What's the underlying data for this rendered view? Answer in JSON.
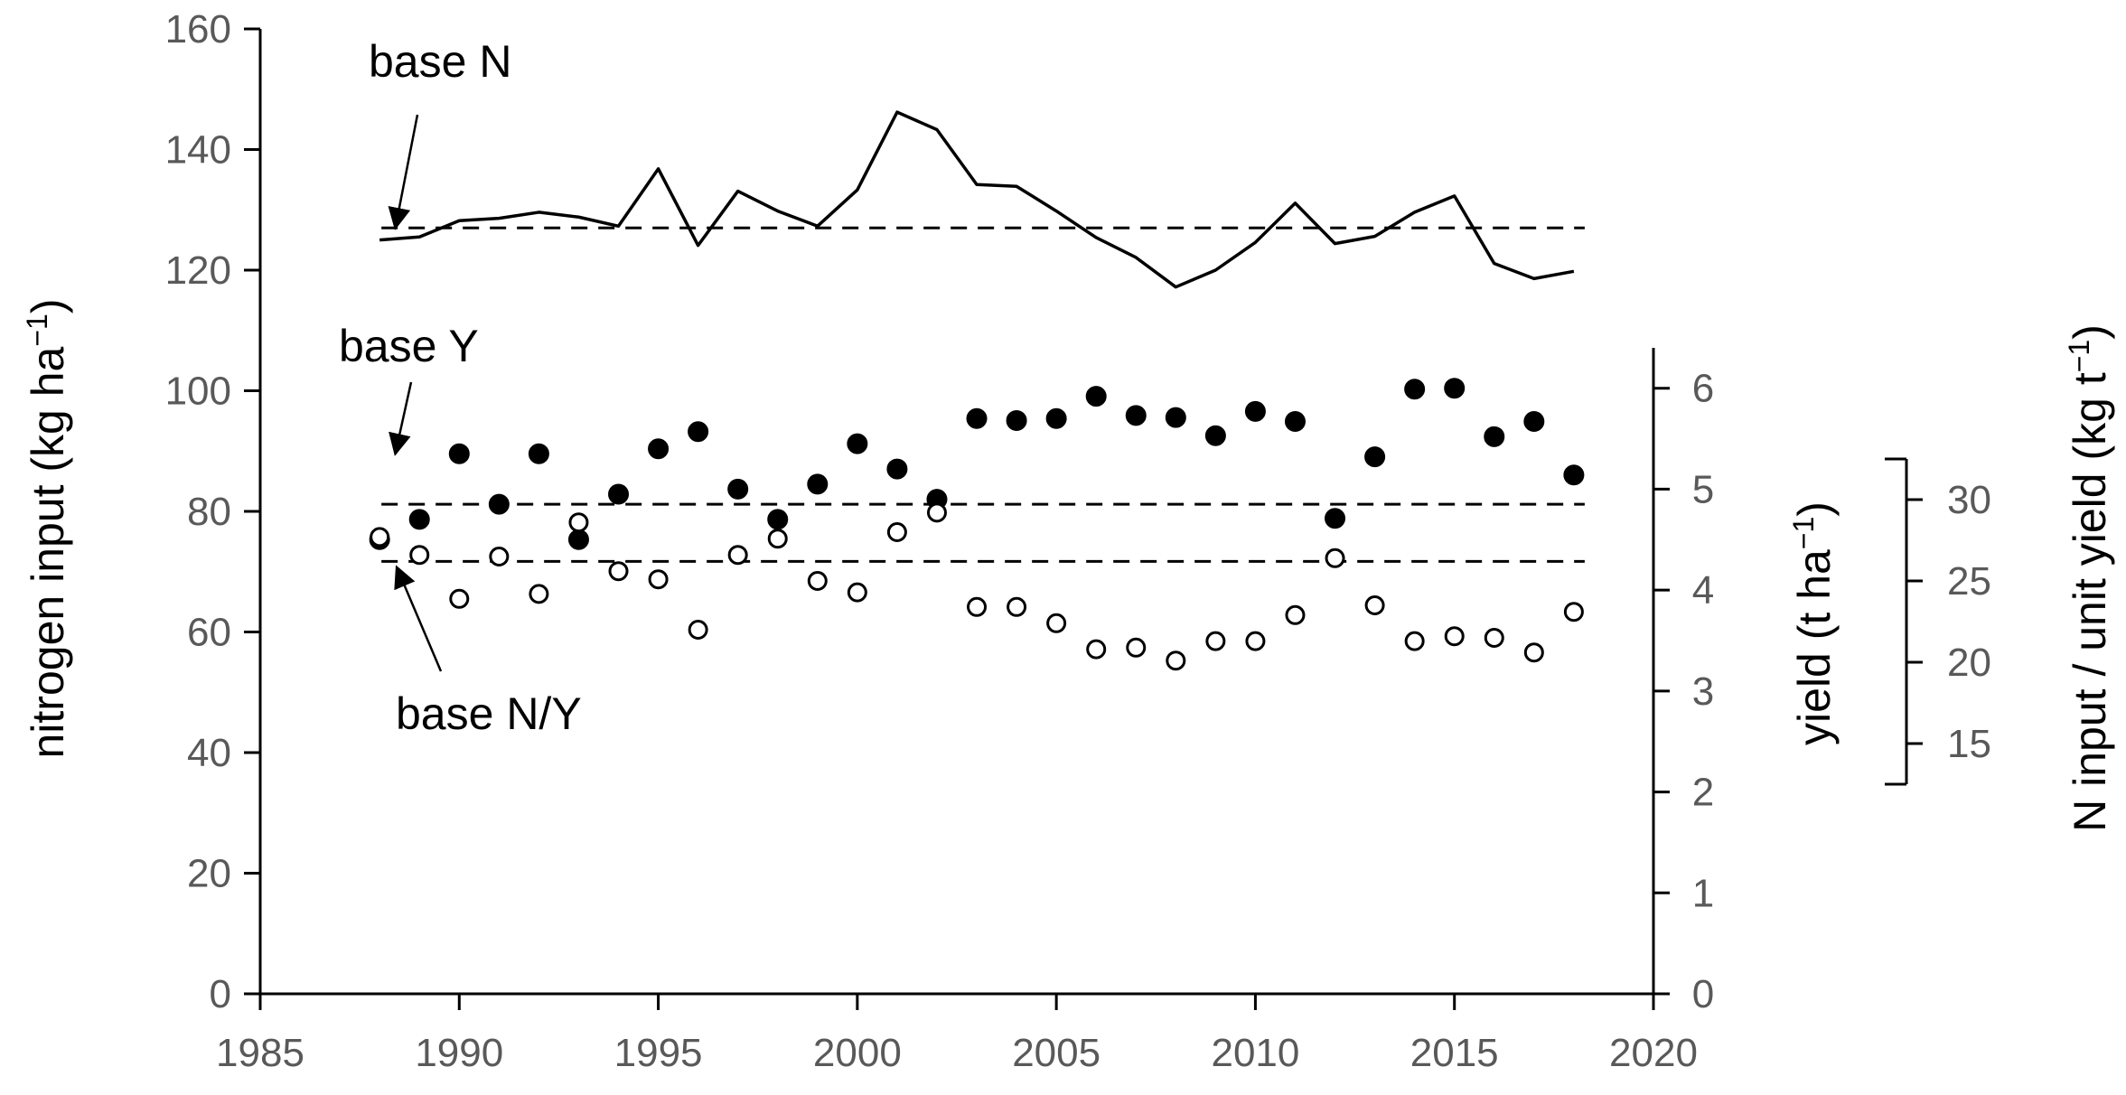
{
  "chart_data": {
    "type": "line",
    "x_axis": {
      "range": [
        1985,
        2020
      ],
      "ticks": [
        1985,
        1990,
        1995,
        2000,
        2005,
        2010,
        2015,
        2020
      ],
      "tick_labels": [
        "1985",
        "1990",
        "1995",
        "2000",
        "2005",
        "2010",
        "2015",
        "2020"
      ]
    },
    "y_left": {
      "label": "nitrogen input (kg ha",
      "label_sup": "−1",
      "label_tail": ")",
      "range": [
        0,
        160
      ],
      "ticks": [
        0,
        20,
        40,
        60,
        80,
        100,
        120,
        140,
        160
      ],
      "tick_labels": [
        "0",
        "20",
        "40",
        "60",
        "80",
        "100",
        "120",
        "140",
        "160"
      ]
    },
    "y_right": {
      "label": "yield (t ha",
      "label_sup": "−1",
      "label_tail": ")",
      "range": [
        0,
        6.4
      ],
      "ticks": [
        0,
        1,
        2,
        3,
        4,
        5,
        6
      ],
      "tick_labels": [
        "0",
        "1",
        "2",
        "3",
        "4",
        "5",
        "6"
      ]
    },
    "y_right2": {
      "label": "N input / unit yield (kg t",
      "label_sup": "−1",
      "label_tail": ")",
      "ticks": [
        15,
        20,
        25,
        30
      ],
      "tick_labels": [
        "15",
        "20",
        "25",
        "30"
      ]
    },
    "years": [
      1988,
      1989,
      1990,
      1991,
      1992,
      1993,
      1994,
      1995,
      1996,
      1997,
      1998,
      1999,
      2000,
      2001,
      2002,
      2003,
      2004,
      2005,
      2006,
      2007,
      2008,
      2009,
      2010,
      2011,
      2012,
      2013,
      2014,
      2015,
      2016,
      2017,
      2018
    ],
    "series": [
      {
        "kind": "line",
        "axis": "left",
        "values": [
          125,
          125.5,
          128.2,
          128.6,
          129.6,
          128.8,
          127.3,
          136.8,
          124.1,
          133.1,
          129.8,
          127.3,
          133.3,
          146.2,
          143.3,
          134.2,
          133.9,
          129.8,
          125.4,
          122.1,
          117.2,
          120,
          124.6,
          131.1,
          124.4,
          125.6,
          129.6,
          132.3,
          121.1,
          118.6,
          119.8
        ]
      },
      {
        "kind": "scatter-filled",
        "axis": "yield",
        "values": [
          4.5,
          4.7,
          5.35,
          4.85,
          5.35,
          4.5,
          4.95,
          5.4,
          5.57,
          5,
          4.7,
          5.05,
          5.45,
          5.2,
          4.9,
          5.7,
          5.68,
          5.7,
          5.92,
          5.73,
          5.71,
          5.53,
          5.77,
          5.67,
          4.71,
          5.32,
          5.99,
          6,
          5.52,
          5.67,
          5.14
        ]
      },
      {
        "kind": "scatter-open",
        "axis": "n_per_yield",
        "values": [
          27.7,
          26.6,
          23.9,
          26.5,
          24.2,
          28.6,
          25.6,
          25.1,
          22,
          26.6,
          27.6,
          25,
          24.3,
          28,
          29.2,
          23.4,
          23.4,
          22.4,
          20.8,
          20.9,
          20.1,
          21.3,
          21.3,
          22.9,
          26.4,
          23.5,
          21.3,
          21.6,
          21.5,
          20.6,
          23.1
        ]
      }
    ],
    "baselines": [
      {
        "name": "base N",
        "axis": "left",
        "value": 127
      },
      {
        "name": "base Y",
        "axis": "yield",
        "value": 4.85
      },
      {
        "name": "base N/Y",
        "axis": "n_per_yield",
        "value": 26.2
      }
    ],
    "annotations": [
      "base N",
      "base Y",
      "base N/Y"
    ]
  }
}
